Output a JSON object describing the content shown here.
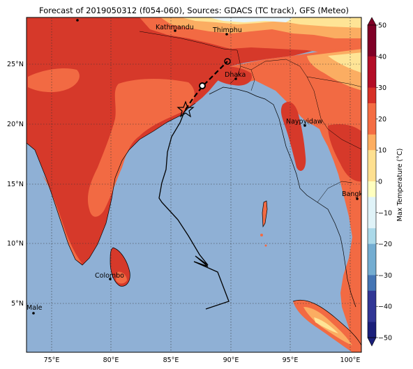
{
  "title": "Forecast of 2019050312 (f054-060), Sources: GDACS (TC track), GFS (Meteo)",
  "map": {
    "lon_ticks": [
      "75°E",
      "80°E",
      "85°E",
      "90°E",
      "95°E",
      "100°E"
    ],
    "lat_ticks": [
      "5°N",
      "10°N",
      "15°N",
      "20°N",
      "25°N"
    ],
    "cities": [
      {
        "name": "Kathmandu"
      },
      {
        "name": "Thimphu"
      },
      {
        "name": "Dhaka"
      },
      {
        "name": "Naypyidaw"
      },
      {
        "name": "Bangkok"
      },
      {
        "name": "Colombo"
      },
      {
        "name": "Male"
      }
    ]
  },
  "colorbar": {
    "label": "Max Temperature (°C)",
    "ticks": [
      "50",
      "40",
      "30",
      "20",
      "10",
      "0",
      "−10",
      "−20",
      "−30",
      "−40",
      "−50"
    ],
    "colors": [
      "#7f0026",
      "#b30d27",
      "#d73027",
      "#f46d43",
      "#fdae61",
      "#fee090",
      "#ffffbf",
      "#e0f3f8",
      "#abd9e9",
      "#74add1",
      "#4575b4",
      "#313695",
      "#1a1f7a"
    ]
  },
  "colors": {
    "ocean": "#8fb0d5",
    "land_hot": "#d6392a",
    "land_warm": "#f26a43",
    "land_mild": "#fbad62",
    "land_cool": "#fee496",
    "land_cold": "#e8f5f8"
  }
}
